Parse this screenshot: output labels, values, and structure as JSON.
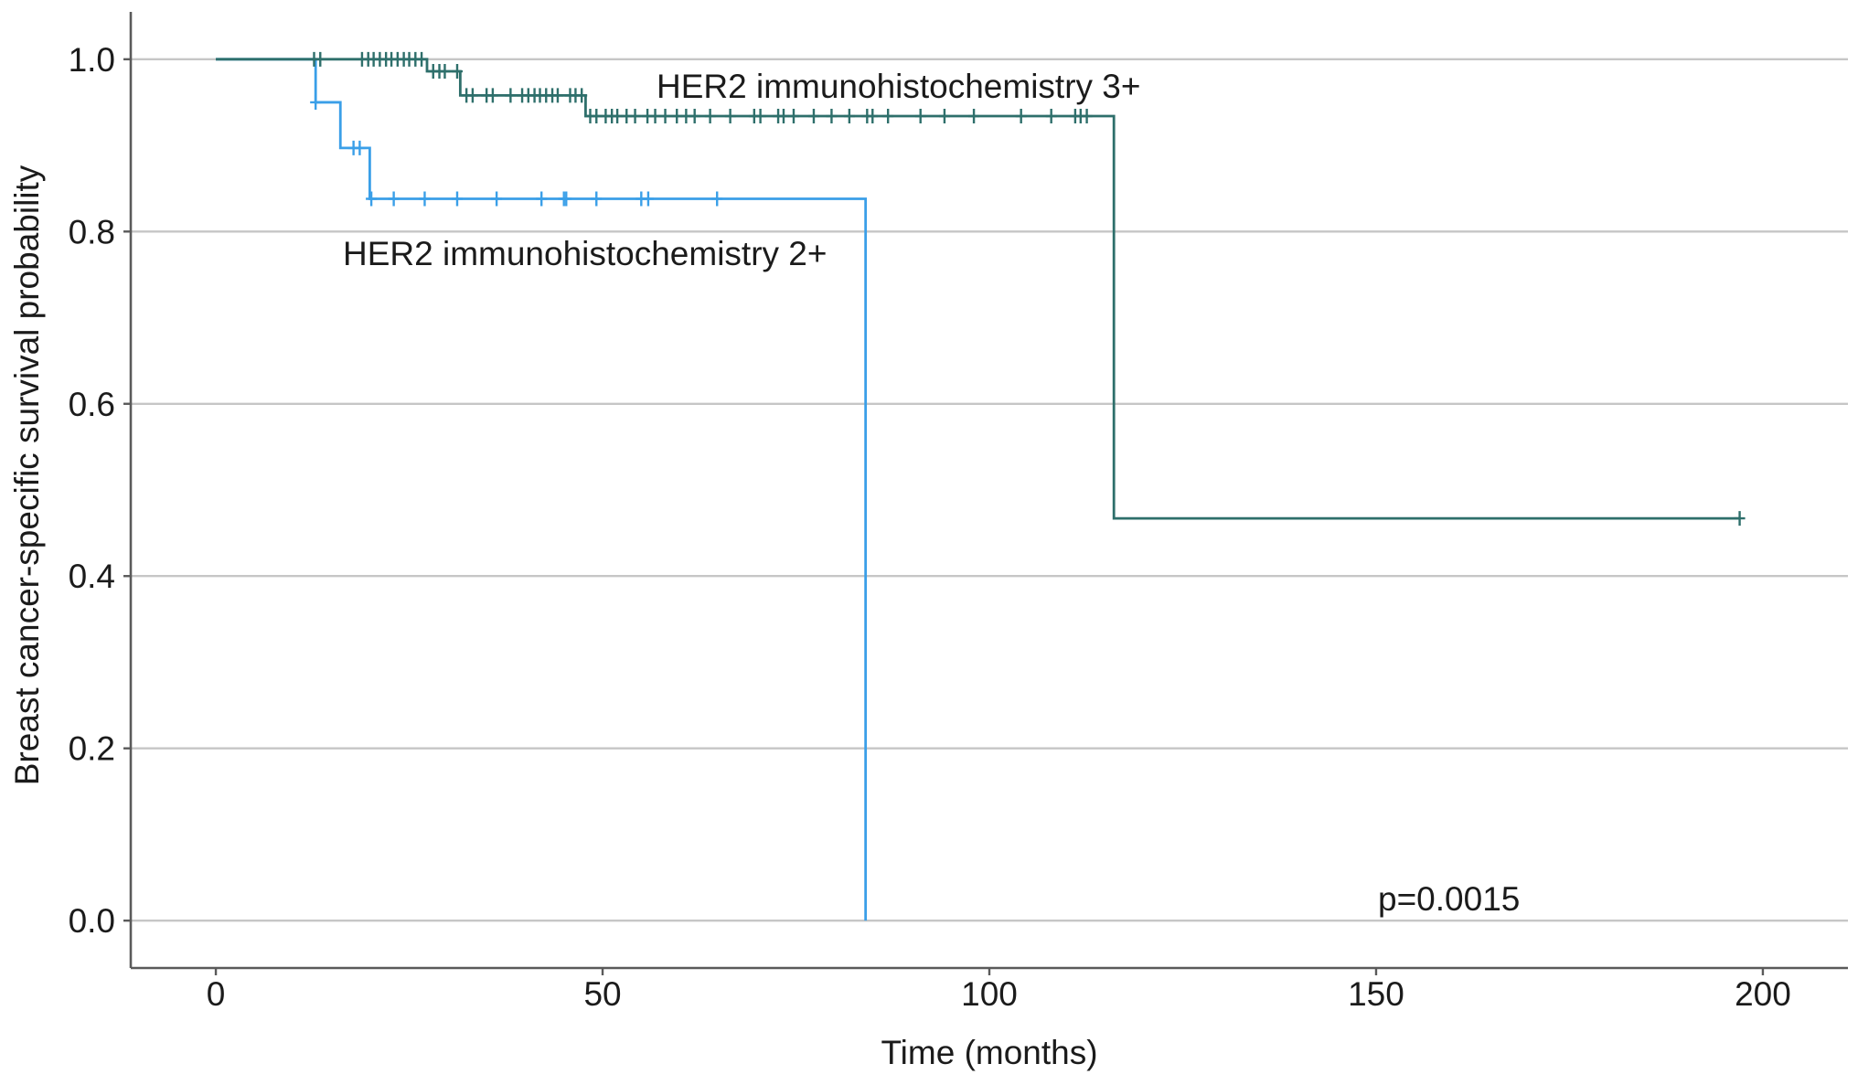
{
  "chart_data": {
    "type": "line",
    "title": "",
    "xlabel": "Time (months)",
    "ylabel": "Breast cancer-specific survival probability",
    "xlim": [
      -11,
      211
    ],
    "ylim": [
      -0.055,
      1.055
    ],
    "grid_y": true,
    "grid_x": false,
    "x_ticks": [
      0,
      50,
      100,
      150,
      200
    ],
    "x_tick_labels": [
      "0",
      "50",
      "100",
      "150",
      "200"
    ],
    "y_ticks": [
      0.0,
      0.2,
      0.4,
      0.6,
      0.8,
      1.0
    ],
    "y_tick_labels": [
      "0.0",
      "0.2",
      "0.4",
      "0.6",
      "0.8",
      "1.0"
    ],
    "series": [
      {
        "name": "HER2 immunohistochemistry 2+",
        "color": "#3a9fe8",
        "steps": [
          {
            "x": 0,
            "y": 1.0
          },
          {
            "x": 12.9,
            "y": 0.95
          },
          {
            "x": 16.1,
            "y": 0.897
          },
          {
            "x": 19.9,
            "y": 0.838
          },
          {
            "x": 84.0,
            "y": 0.0
          }
        ],
        "end_x": 84.0,
        "censored_x": [
          12.9,
          17.8,
          18.6,
          20.1,
          23.0,
          27.0,
          31.2,
          36.3,
          42.1,
          45.0,
          45.3,
          49.2,
          55.0,
          55.9,
          64.8
        ]
      },
      {
        "name": "HER2 immunohistochemistry 3+",
        "color": "#2e6f6b",
        "steps": [
          {
            "x": 0,
            "y": 1.0
          },
          {
            "x": 27.3,
            "y": 0.986
          },
          {
            "x": 31.6,
            "y": 0.958
          },
          {
            "x": 47.8,
            "y": 0.934
          },
          {
            "x": 116.1,
            "y": 0.467
          }
        ],
        "end_x": 197.0,
        "censored_x": [
          12.7,
          13.5,
          18.9,
          19.7,
          20.4,
          21.2,
          22.0,
          22.7,
          23.5,
          24.3,
          25.0,
          25.8,
          26.6,
          28.1,
          28.9,
          29.6,
          31.2,
          32.4,
          33.2,
          35.0,
          35.8,
          38.1,
          39.6,
          40.4,
          41.2,
          41.9,
          42.7,
          43.5,
          44.2,
          45.8,
          46.5,
          47.3,
          48.4,
          49.2,
          50.4,
          51.2,
          51.9,
          53.1,
          54.2,
          55.8,
          56.8,
          58.1,
          59.6,
          60.8,
          61.9,
          63.9,
          66.5,
          69.6,
          70.4,
          72.7,
          73.4,
          74.7,
          77.3,
          79.6,
          81.9,
          84.2,
          84.9,
          86.9,
          91.1,
          94.2,
          98.0,
          104.1,
          108.0,
          111.1,
          111.8,
          112.6,
          197.0
        ]
      }
    ],
    "annotations": [
      {
        "text": "p=0.0015"
      }
    ]
  }
}
